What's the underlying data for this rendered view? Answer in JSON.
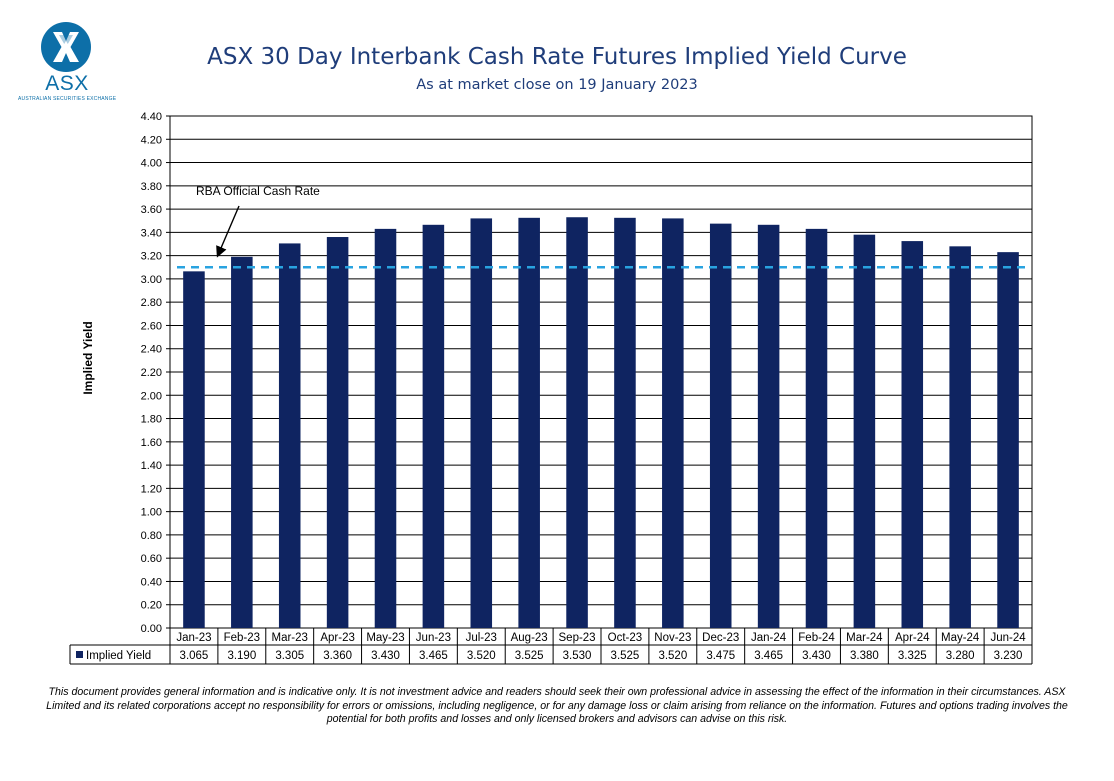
{
  "logo": {
    "name": "ASX",
    "subtitle": "AUSTRALIAN SECURITIES EXCHANGE",
    "color": "#0d6fa8"
  },
  "header": {
    "title": "ASX 30 Day Interbank Cash Rate Futures Implied Yield Curve",
    "subtitle": "As at market close on 19 January 2023"
  },
  "chart_data": {
    "type": "bar",
    "ylabel": "Implied Yield",
    "ylim": [
      0,
      4.4
    ],
    "ytick_step": 0.2,
    "ytick_labels": [
      "0.00",
      "0.20",
      "0.40",
      "0.60",
      "0.80",
      "1.00",
      "1.20",
      "1.40",
      "1.60",
      "1.80",
      "2.00",
      "2.20",
      "2.40",
      "2.60",
      "2.80",
      "3.00",
      "3.20",
      "3.40",
      "3.60",
      "3.80",
      "4.00",
      "4.20",
      "4.40"
    ],
    "grid": true,
    "categories": [
      "Jan-23",
      "Feb-23",
      "Mar-23",
      "Apr-23",
      "May-23",
      "Jun-23",
      "Jul-23",
      "Aug-23",
      "Sep-23",
      "Oct-23",
      "Nov-23",
      "Dec-23",
      "Jan-24",
      "Feb-24",
      "Mar-24",
      "Apr-24",
      "May-24",
      "Jun-24"
    ],
    "series": [
      {
        "name": "Implied Yield",
        "color": "#0f2461",
        "values": [
          3.065,
          3.19,
          3.305,
          3.36,
          3.43,
          3.465,
          3.52,
          3.525,
          3.53,
          3.525,
          3.52,
          3.475,
          3.465,
          3.43,
          3.38,
          3.325,
          3.28,
          3.23
        ],
        "value_labels": [
          "3.065",
          "3.190",
          "3.305",
          "3.360",
          "3.430",
          "3.465",
          "3.520",
          "3.525",
          "3.530",
          "3.525",
          "3.520",
          "3.475",
          "3.465",
          "3.430",
          "3.380",
          "3.325",
          "3.280",
          "3.230"
        ]
      }
    ],
    "reference_line": {
      "label": "RBA Official Cash Rate",
      "value": 3.1,
      "color": "#29a3e0",
      "style": "dashed"
    },
    "data_table": true
  },
  "disclaimer": "This document provides general information and is indicative only. It is not investment advice and readers should seek their own professional advice in assessing the effect of the information in their circumstances. ASX Limited and its related corporations accept no responsibility for errors or omissions, including negligence, or for any damage loss or claim arising from reliance on the information. Futures and options trading involves the potential for both profits and losses and only licensed brokers and advisors can advise on this risk."
}
